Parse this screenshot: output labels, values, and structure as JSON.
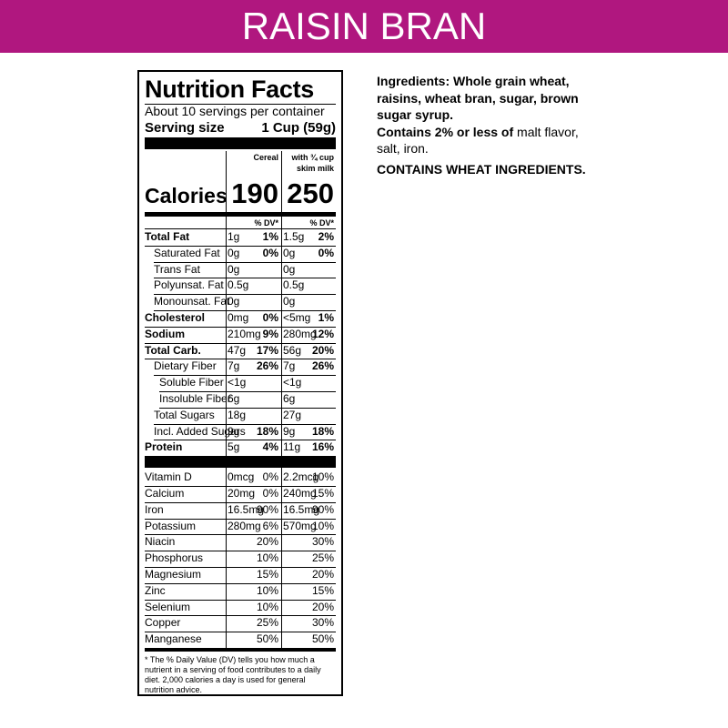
{
  "header": {
    "title": "RAISIN BRAN"
  },
  "label": {
    "title": "Nutrition Facts",
    "servings": "About 10 servings per container",
    "serving_size_label": "Serving size",
    "serving_size": "1 Cup (59g)",
    "col1_header": "Cereal",
    "col2_header": [
      "with ¾ cup",
      "skim milk"
    ],
    "calories_label": "Calories",
    "calories": [
      190,
      250
    ],
    "dv_header": "% DV*",
    "rows": [
      {
        "name": "Total Fat",
        "level": 0,
        "bold": true,
        "cereal": [
          "1g",
          "1%"
        ],
        "milk": [
          "1.5g",
          "2%"
        ]
      },
      {
        "name": "Saturated Fat",
        "level": 1,
        "bold": false,
        "cereal": [
          "0g",
          "0%"
        ],
        "milk": [
          "0g",
          "0%"
        ]
      },
      {
        "name": "Trans Fat",
        "level": 1,
        "bold": false,
        "cereal": [
          "0g",
          null
        ],
        "milk": [
          "0g",
          null
        ]
      },
      {
        "name": "Polyunsat. Fat",
        "level": 1,
        "bold": false,
        "cereal": [
          "0.5g",
          null
        ],
        "milk": [
          "0.5g",
          null
        ]
      },
      {
        "name": "Monounsat. Fat",
        "level": 1,
        "bold": false,
        "cereal": [
          "0g",
          null
        ],
        "milk": [
          "0g",
          null
        ]
      },
      {
        "name": "Cholesterol",
        "level": 0,
        "bold": true,
        "cereal": [
          "0mg",
          "0%"
        ],
        "milk": [
          "<5mg",
          "1%"
        ]
      },
      {
        "name": "Sodium",
        "level": 0,
        "bold": true,
        "cereal": [
          "210mg",
          "9%"
        ],
        "milk": [
          "280mg",
          "12%"
        ]
      },
      {
        "name": "Total Carb.",
        "level": 0,
        "bold": true,
        "cereal": [
          "47g",
          "17%"
        ],
        "milk": [
          "56g",
          "20%"
        ]
      },
      {
        "name": "Dietary Fiber",
        "level": 1,
        "bold": false,
        "cereal": [
          "7g",
          "26%"
        ],
        "milk": [
          "7g",
          "26%"
        ]
      },
      {
        "name": "Soluble Fiber",
        "level": 2,
        "bold": false,
        "cereal": [
          "<1g",
          null
        ],
        "milk": [
          "<1g",
          null
        ]
      },
      {
        "name": "Insoluble Fiber",
        "level": 2,
        "bold": false,
        "cereal": [
          "6g",
          null
        ],
        "milk": [
          "6g",
          null
        ]
      },
      {
        "name": "Total Sugars",
        "level": 1,
        "bold": false,
        "cereal": [
          "18g",
          null
        ],
        "milk": [
          "27g",
          null
        ]
      },
      {
        "name": "Incl. Added Sugars",
        "level": 1,
        "bold": false,
        "cereal": [
          "9g",
          "18%"
        ],
        "milk": [
          "9g",
          "18%"
        ]
      },
      {
        "name": "Protein",
        "level": 0,
        "bold": true,
        "cereal": [
          "5g",
          "4%"
        ],
        "milk": [
          "11g",
          "16%"
        ]
      }
    ],
    "vitamins": [
      {
        "name": "Vitamin D",
        "cereal": [
          "0mcg",
          "0%"
        ],
        "milk": [
          "2.2mcg",
          "10%"
        ]
      },
      {
        "name": "Calcium",
        "cereal": [
          "20mg",
          "0%"
        ],
        "milk": [
          "240mg",
          "15%"
        ]
      },
      {
        "name": "Iron",
        "cereal": [
          "16.5mg",
          "90%"
        ],
        "milk": [
          "16.5mg",
          "90%"
        ]
      },
      {
        "name": "Potassium",
        "cereal": [
          "280mg",
          "6%"
        ],
        "milk": [
          "570mg",
          "10%"
        ]
      },
      {
        "name": "Niacin",
        "cereal": [
          null,
          "20%"
        ],
        "milk": [
          null,
          "30%"
        ]
      },
      {
        "name": "Phosphorus",
        "cereal": [
          null,
          "10%"
        ],
        "milk": [
          null,
          "25%"
        ]
      },
      {
        "name": "Magnesium",
        "cereal": [
          null,
          "15%"
        ],
        "milk": [
          null,
          "20%"
        ]
      },
      {
        "name": "Zinc",
        "cereal": [
          null,
          "10%"
        ],
        "milk": [
          null,
          "15%"
        ]
      },
      {
        "name": "Selenium",
        "cereal": [
          null,
          "10%"
        ],
        "milk": [
          null,
          "20%"
        ]
      },
      {
        "name": "Copper",
        "cereal": [
          null,
          "25%"
        ],
        "milk": [
          null,
          "30%"
        ]
      },
      {
        "name": "Manganese",
        "cereal": [
          null,
          "50%"
        ],
        "milk": [
          null,
          "50%"
        ]
      }
    ],
    "footnote": "* The % Daily Value (DV) tells you how much a nutrient in a serving of food contributes to a daily diet. 2,000 calories a day is used for general nutrition advice."
  },
  "ingredients": {
    "list": "Ingredients: Whole grain wheat, raisins, wheat bran, sugar, brown sugar syrup.",
    "contains_bold": "Contains 2% or less of",
    "contains_rest": "malt flavor, salt, iron.",
    "allergen": "CONTAINS WHEAT INGREDIENTS."
  }
}
